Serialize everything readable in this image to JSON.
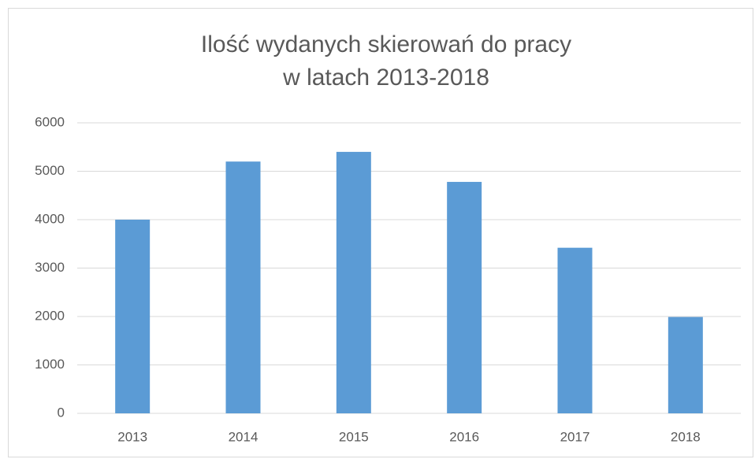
{
  "chart_data": {
    "type": "bar",
    "title": "Ilość wydanych skierowań do pracy w latach 2013-2018",
    "categories": [
      "2013",
      "2014",
      "2015",
      "2016",
      "2017",
      "2018"
    ],
    "values": [
      4000,
      5200,
      5400,
      4780,
      3420,
      1990
    ],
    "color": "#5b9bd5",
    "ylim": [
      0,
      6000
    ],
    "yticks": [
      0,
      1000,
      2000,
      3000,
      4000,
      5000,
      6000
    ],
    "grid": true
  }
}
